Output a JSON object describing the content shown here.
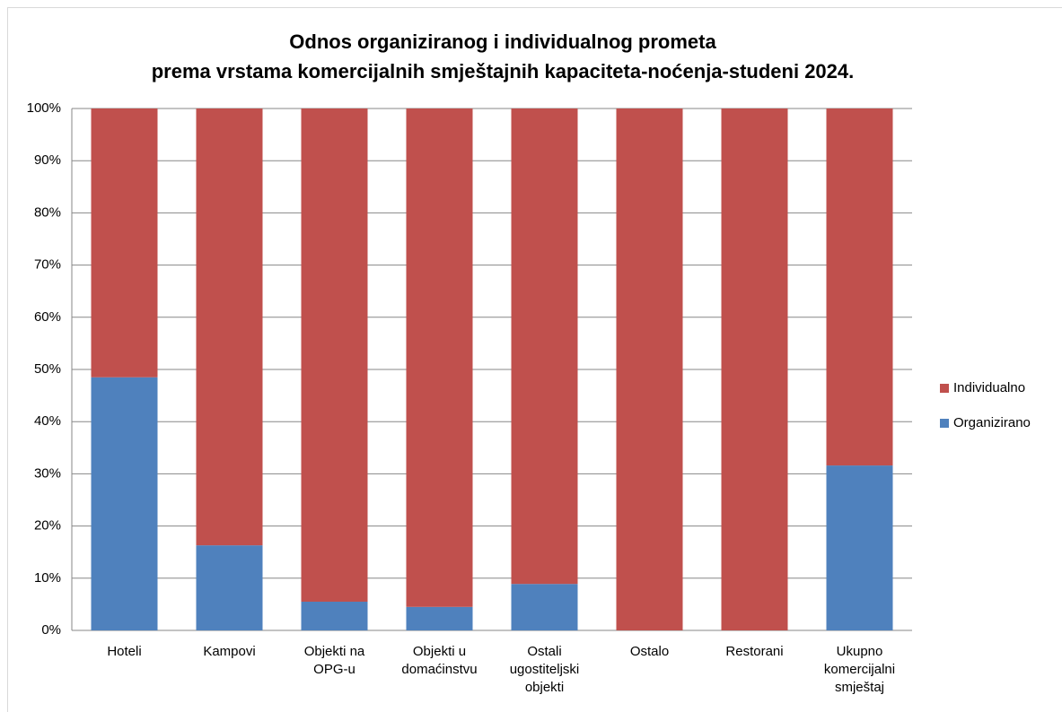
{
  "chart_data": {
    "type": "stacked_bar_percent",
    "title": "Odnos organiziranog i individualnog prometa\nprema vrstama komercijalnih smještajnih kapaciteta-noćenja-studeni 2024.",
    "categories": [
      "Hoteli",
      "Kampovi",
      "Objekti na OPG-u",
      "Objekti u domaćinstvu",
      "Ostali ugostiteljski objekti",
      "Ostalo",
      "Restorani",
      "Ukupno komercijalni smještaj"
    ],
    "series": [
      {
        "name": "Organizirano",
        "color": "#4f81bd",
        "values": [
          48.5,
          16.3,
          5.5,
          4.5,
          8.9,
          0,
          0,
          31.6
        ]
      },
      {
        "name": "Individualno",
        "color": "#c0504d",
        "values": [
          51.5,
          83.7,
          94.5,
          95.5,
          91.1,
          100,
          100,
          68.4
        ]
      }
    ],
    "ylim": [
      0,
      100
    ],
    "yticks": [
      {
        "value": 0,
        "label": "0%"
      },
      {
        "value": 10,
        "label": "10%"
      },
      {
        "value": 20,
        "label": "20%"
      },
      {
        "value": 30,
        "label": "30%"
      },
      {
        "value": 40,
        "label": "40%"
      },
      {
        "value": 50,
        "label": "50%"
      },
      {
        "value": 60,
        "label": "60%"
      },
      {
        "value": 70,
        "label": "70%"
      },
      {
        "value": 80,
        "label": "80%"
      },
      {
        "value": 90,
        "label": "90%"
      },
      {
        "value": 100,
        "label": "100%"
      }
    ],
    "grid": true,
    "legend": "right"
  }
}
